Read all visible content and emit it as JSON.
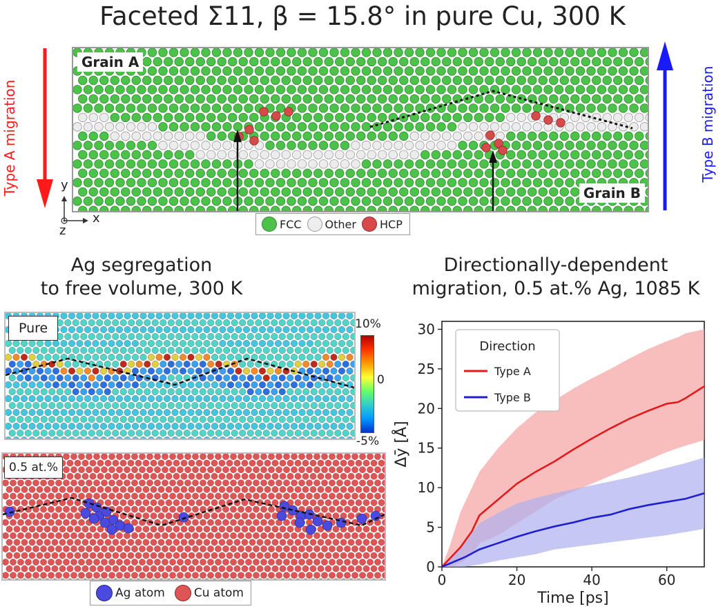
{
  "header": {
    "title": "Faceted Σ11, β = 15.8° in pure Cu, 300 K"
  },
  "top_panel": {
    "grain_a": "Grain A",
    "grain_b": "Grain B",
    "type_a_label": "Type A migration",
    "type_b_label": "Type B migration",
    "axis_y": "y",
    "axis_x": "x",
    "axis_z": "z",
    "legend": [
      {
        "label": "FCC",
        "color": "#4cc24a"
      },
      {
        "label": "Other",
        "color": "#e6e6e6"
      },
      {
        "label": "HCP",
        "color": "#d84a4a"
      }
    ],
    "colors": {
      "type_a": "#ff1a1a",
      "type_b": "#1a1aff"
    }
  },
  "left_section": {
    "title_line1": "Ag segregation",
    "title_line2": "to free volume, 300 K",
    "pure_label": "Pure",
    "colorbar": {
      "max": "10%",
      "mid": "0",
      "min": "-5%"
    },
    "alloy_label": "0.5 at.%",
    "legend": [
      {
        "label": "Ag atom",
        "color": "#4a4adf"
      },
      {
        "label": "Cu atom",
        "color": "#dd5555"
      }
    ]
  },
  "right_section": {
    "title_line1": "Directionally-dependent",
    "title_line2": "migration, 0.5 at.% Ag, 1085 K"
  },
  "chart_data": {
    "type": "line",
    "xlabel": "Time [ps]",
    "ylabel": "Δȳ [Å]",
    "xlim": [
      0,
      70
    ],
    "ylim": [
      0,
      31
    ],
    "xticks": [
      0,
      20,
      40,
      60
    ],
    "yticks": [
      0,
      5,
      10,
      15,
      20,
      25,
      30
    ],
    "grid": false,
    "legend_title": "Direction",
    "legend_position": "top-left",
    "series": [
      {
        "name": "Type A",
        "color": "#e31a1c",
        "band_color": "#f5a3a3",
        "x": [
          0,
          2,
          5,
          8,
          10,
          15,
          20,
          25,
          30,
          35,
          40,
          45,
          50,
          55,
          60,
          63,
          65,
          70
        ],
        "y": [
          0,
          1,
          2.5,
          4.5,
          6.5,
          8.5,
          10.5,
          12,
          13.3,
          14.8,
          16.2,
          17.5,
          18.7,
          19.7,
          20.6,
          20.8,
          21.3,
          22.8
        ],
        "upper": [
          0,
          2.5,
          7,
          10,
          12,
          15,
          17.5,
          19.5,
          21,
          22.5,
          23.8,
          25,
          26.3,
          27.5,
          28.5,
          29,
          29.5,
          30
        ],
        "lower": [
          0,
          0,
          0.5,
          1.5,
          3,
          4,
          5.5,
          7,
          8.5,
          9.5,
          10.5,
          11.5,
          12.5,
          13.5,
          14.5,
          15,
          15.3,
          16
        ]
      },
      {
        "name": "Type B",
        "color": "#1f1fd0",
        "band_color": "#aeb0ee",
        "x": [
          0,
          3,
          6,
          10,
          15,
          20,
          25,
          30,
          35,
          40,
          45,
          50,
          55,
          60,
          65,
          70
        ],
        "y": [
          0,
          0.6,
          1.2,
          2.2,
          3,
          3.8,
          4.5,
          5.1,
          5.6,
          6.2,
          6.6,
          7.3,
          7.8,
          8.2,
          8.6,
          9.3
        ],
        "upper": [
          0,
          1.5,
          3,
          5.5,
          6.8,
          8,
          8.7,
          9.3,
          9.8,
          10.3,
          10.8,
          11.3,
          11.9,
          12.5,
          13.1,
          13.8
        ],
        "lower": [
          0,
          0,
          0,
          0.3,
          0.8,
          1.2,
          1.6,
          2.2,
          2.5,
          2.8,
          3.1,
          3.4,
          3.7,
          4,
          4.4,
          4.8
        ]
      }
    ]
  }
}
